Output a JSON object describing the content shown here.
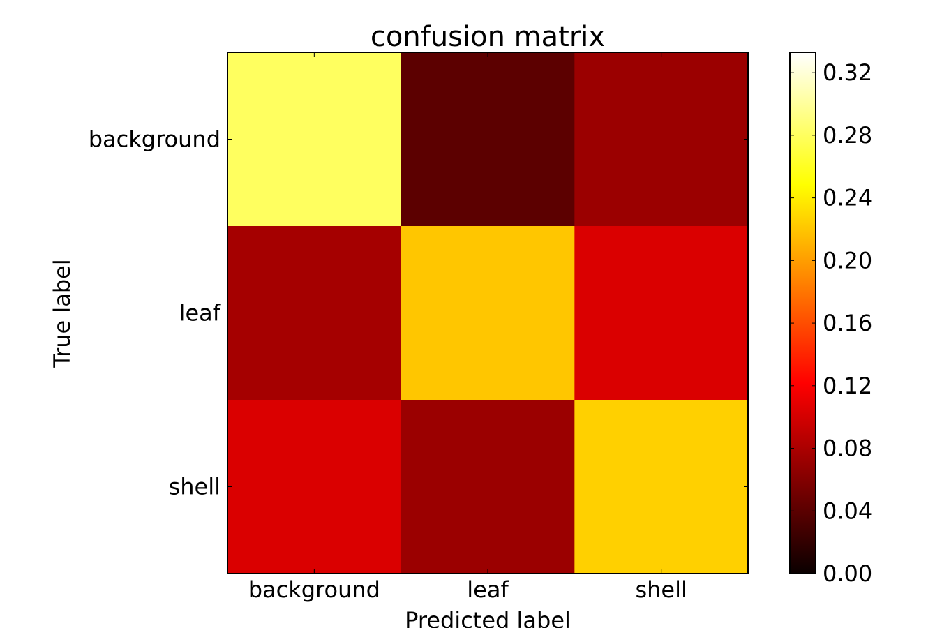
{
  "chart_data": {
    "type": "heatmap",
    "title": "confusion matrix",
    "xlabel": "Predicted label",
    "ylabel": "True label",
    "x_categories": [
      "background",
      "leaf",
      "shell"
    ],
    "y_categories": [
      "background",
      "leaf",
      "shell"
    ],
    "values": [
      [
        0.28,
        0.03,
        0.06
      ],
      [
        0.065,
        0.22,
        0.09
      ],
      [
        0.09,
        0.06,
        0.225
      ]
    ],
    "colorbar": {
      "colormap": "hot",
      "range": [
        0.0,
        0.333
      ],
      "ticks": [
        "0.00",
        "0.04",
        "0.08",
        "0.12",
        "0.16",
        "0.20",
        "0.24",
        "0.28",
        "0.32"
      ]
    }
  }
}
